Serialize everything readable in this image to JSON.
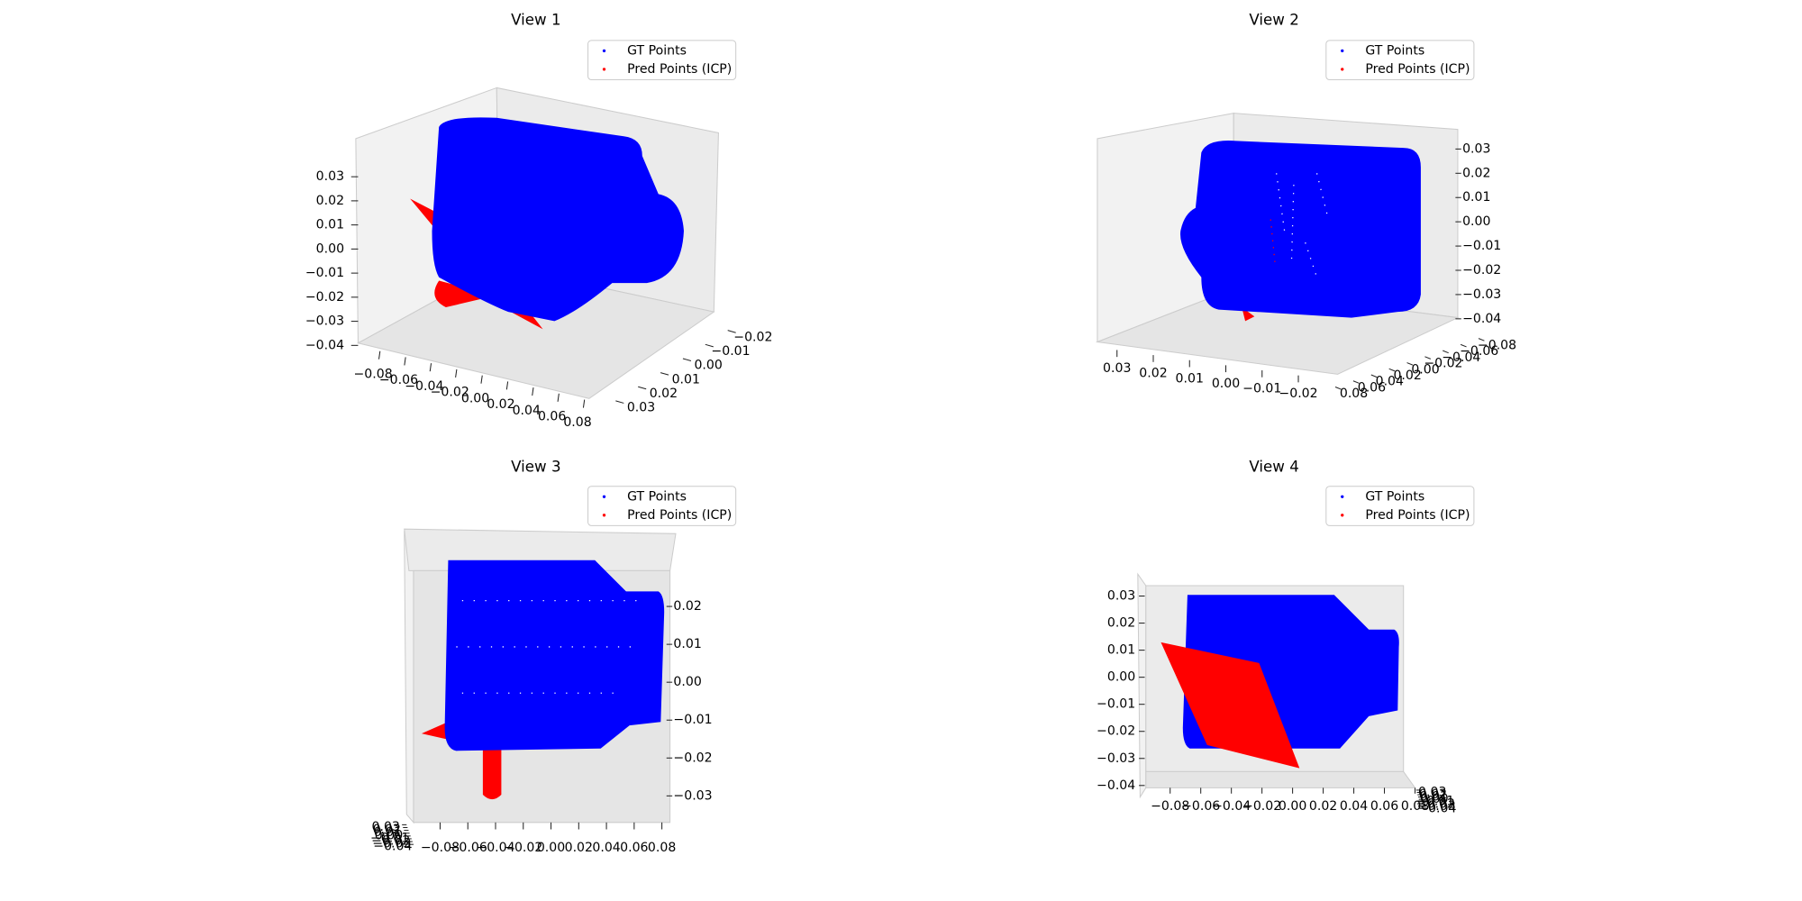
{
  "chart_data": [
    {
      "type": "scatter3d",
      "title": "View 1",
      "series": [
        {
          "name": "GT Points",
          "color": "blue"
        },
        {
          "name": "Pred Points (ICP)",
          "color": "red"
        }
      ],
      "xlim": [
        -0.08,
        0.08
      ],
      "ylim": [
        -0.02,
        0.03
      ],
      "zlim": [
        -0.04,
        0.03
      ],
      "xticks": [
        {
          "value": -0.08,
          "label": "−0.08"
        },
        {
          "value": -0.06,
          "label": "−0.06"
        },
        {
          "value": -0.04,
          "label": "−0.04"
        },
        {
          "value": -0.02,
          "label": "−0.02"
        },
        {
          "value": 0,
          "label": "0.00"
        },
        {
          "value": 0.02,
          "label": "0.02"
        },
        {
          "value": 0.04,
          "label": "0.04"
        },
        {
          "value": 0.06,
          "label": "0.06"
        },
        {
          "value": 0.08,
          "label": "0.08"
        }
      ],
      "yticks": [
        {
          "value": -0.02,
          "label": "−0.02"
        },
        {
          "value": -0.01,
          "label": "−0.01"
        },
        {
          "value": 0,
          "label": "0.00"
        },
        {
          "value": 0.01,
          "label": "0.01"
        },
        {
          "value": 0.02,
          "label": "0.02"
        },
        {
          "value": 0.03,
          "label": "0.03"
        }
      ],
      "zticks": [
        {
          "value": -0.04,
          "label": "−0.04"
        },
        {
          "value": -0.03,
          "label": "−0.03"
        },
        {
          "value": -0.02,
          "label": "−0.02"
        },
        {
          "value": -0.01,
          "label": "−0.01"
        },
        {
          "value": 0,
          "label": "0.00"
        },
        {
          "value": 0.01,
          "label": "0.01"
        },
        {
          "value": 0.02,
          "label": "0.02"
        },
        {
          "value": 0.03,
          "label": "0.03"
        }
      ]
    },
    {
      "type": "scatter3d",
      "title": "View 2",
      "series": [
        {
          "name": "GT Points",
          "color": "blue"
        },
        {
          "name": "Pred Points (ICP)",
          "color": "red"
        }
      ],
      "xlim": [
        -0.08,
        0.08
      ],
      "ylim": [
        -0.02,
        0.03
      ],
      "zlim": [
        -0.04,
        0.03
      ],
      "xticks": [
        {
          "value": -0.08,
          "label": "−0.08"
        },
        {
          "value": -0.06,
          "label": "−0.06"
        },
        {
          "value": -0.04,
          "label": "−0.04"
        },
        {
          "value": -0.02,
          "label": "−0.02"
        },
        {
          "value": 0,
          "label": "0.00"
        },
        {
          "value": 0.02,
          "label": "0.02"
        },
        {
          "value": 0.04,
          "label": "0.04"
        },
        {
          "value": 0.06,
          "label": "0.06"
        },
        {
          "value": 0.08,
          "label": "0.08"
        }
      ],
      "yticks": [
        {
          "value": -0.02,
          "label": "−0.02"
        },
        {
          "value": -0.01,
          "label": "−0.01"
        },
        {
          "value": 0,
          "label": "0.00"
        },
        {
          "value": 0.01,
          "label": "0.01"
        },
        {
          "value": 0.02,
          "label": "0.02"
        },
        {
          "value": 0.03,
          "label": "0.03"
        }
      ],
      "zticks": [
        {
          "value": -0.04,
          "label": "−0.04"
        },
        {
          "value": -0.03,
          "label": "−0.03"
        },
        {
          "value": -0.02,
          "label": "−0.02"
        },
        {
          "value": -0.01,
          "label": "−0.01"
        },
        {
          "value": 0,
          "label": "0.00"
        },
        {
          "value": 0.01,
          "label": "0.01"
        },
        {
          "value": 0.02,
          "label": "0.02"
        },
        {
          "value": 0.03,
          "label": "0.03"
        }
      ]
    },
    {
      "type": "scatter3d",
      "title": "View 3",
      "series": [
        {
          "name": "GT Points",
          "color": "blue"
        },
        {
          "name": "Pred Points (ICP)",
          "color": "red"
        }
      ],
      "xlim": [
        -0.08,
        0.08
      ],
      "ylim": [
        -0.04,
        0.03
      ],
      "zlim": [
        -0.03,
        0.02
      ],
      "xticks": [
        {
          "value": -0.08,
          "label": "−0.08"
        },
        {
          "value": -0.06,
          "label": "−0.06"
        },
        {
          "value": -0.04,
          "label": "−0.04"
        },
        {
          "value": -0.02,
          "label": "−0.02"
        },
        {
          "value": 0,
          "label": "0.00"
        },
        {
          "value": 0.02,
          "label": "0.02"
        },
        {
          "value": 0.04,
          "label": "0.04"
        },
        {
          "value": 0.06,
          "label": "0.06"
        },
        {
          "value": 0.08,
          "label": "0.08"
        }
      ],
      "yticks": [
        {
          "value": -0.04,
          "label": "−0.04"
        },
        {
          "value": -0.03,
          "label": "−0.03"
        },
        {
          "value": -0.02,
          "label": "−0.02"
        },
        {
          "value": -0.01,
          "label": "−0.01"
        },
        {
          "value": 0,
          "label": "0.00"
        },
        {
          "value": 0.01,
          "label": "0.01"
        },
        {
          "value": 0.02,
          "label": "0.02"
        },
        {
          "value": 0.03,
          "label": "0.03"
        }
      ],
      "zticks": [
        {
          "value": -0.03,
          "label": "−0.03"
        },
        {
          "value": -0.02,
          "label": "−0.02"
        },
        {
          "value": -0.01,
          "label": "−0.01"
        },
        {
          "value": 0,
          "label": "0.00"
        },
        {
          "value": 0.01,
          "label": "0.01"
        },
        {
          "value": 0.02,
          "label": "0.02"
        }
      ]
    },
    {
      "type": "scatter3d",
      "title": "View 4",
      "series": [
        {
          "name": "GT Points",
          "color": "blue"
        },
        {
          "name": "Pred Points (ICP)",
          "color": "red"
        }
      ],
      "xlim": [
        -0.08,
        0.08
      ],
      "ylim": [
        -0.04,
        0.03
      ],
      "zlim": [
        -0.04,
        0.03
      ],
      "xticks": [
        {
          "value": -0.08,
          "label": "−0.08"
        },
        {
          "value": -0.06,
          "label": "−0.06"
        },
        {
          "value": -0.04,
          "label": "−0.04"
        },
        {
          "value": -0.02,
          "label": "−0.02"
        },
        {
          "value": 0,
          "label": "0.00"
        },
        {
          "value": 0.02,
          "label": "0.02"
        },
        {
          "value": 0.04,
          "label": "0.04"
        },
        {
          "value": 0.06,
          "label": "0.06"
        },
        {
          "value": 0.08,
          "label": "0.08"
        }
      ],
      "yticks": [
        {
          "value": -0.04,
          "label": "−0.04"
        },
        {
          "value": -0.03,
          "label": "−0.03"
        },
        {
          "value": -0.02,
          "label": "−0.02"
        },
        {
          "value": -0.01,
          "label": "−0.01"
        },
        {
          "value": 0,
          "label": "0.00"
        },
        {
          "value": 0.01,
          "label": "0.01"
        },
        {
          "value": 0.02,
          "label": "0.02"
        },
        {
          "value": 0.03,
          "label": "0.03"
        }
      ],
      "zticks": [
        {
          "value": -0.04,
          "label": "−0.04"
        },
        {
          "value": -0.03,
          "label": "−0.03"
        },
        {
          "value": -0.02,
          "label": "−0.02"
        },
        {
          "value": -0.01,
          "label": "−0.01"
        },
        {
          "value": 0,
          "label": "0.00"
        },
        {
          "value": 0.01,
          "label": "0.01"
        },
        {
          "value": 0.02,
          "label": "0.02"
        },
        {
          "value": 0.03,
          "label": "0.03"
        }
      ]
    }
  ]
}
